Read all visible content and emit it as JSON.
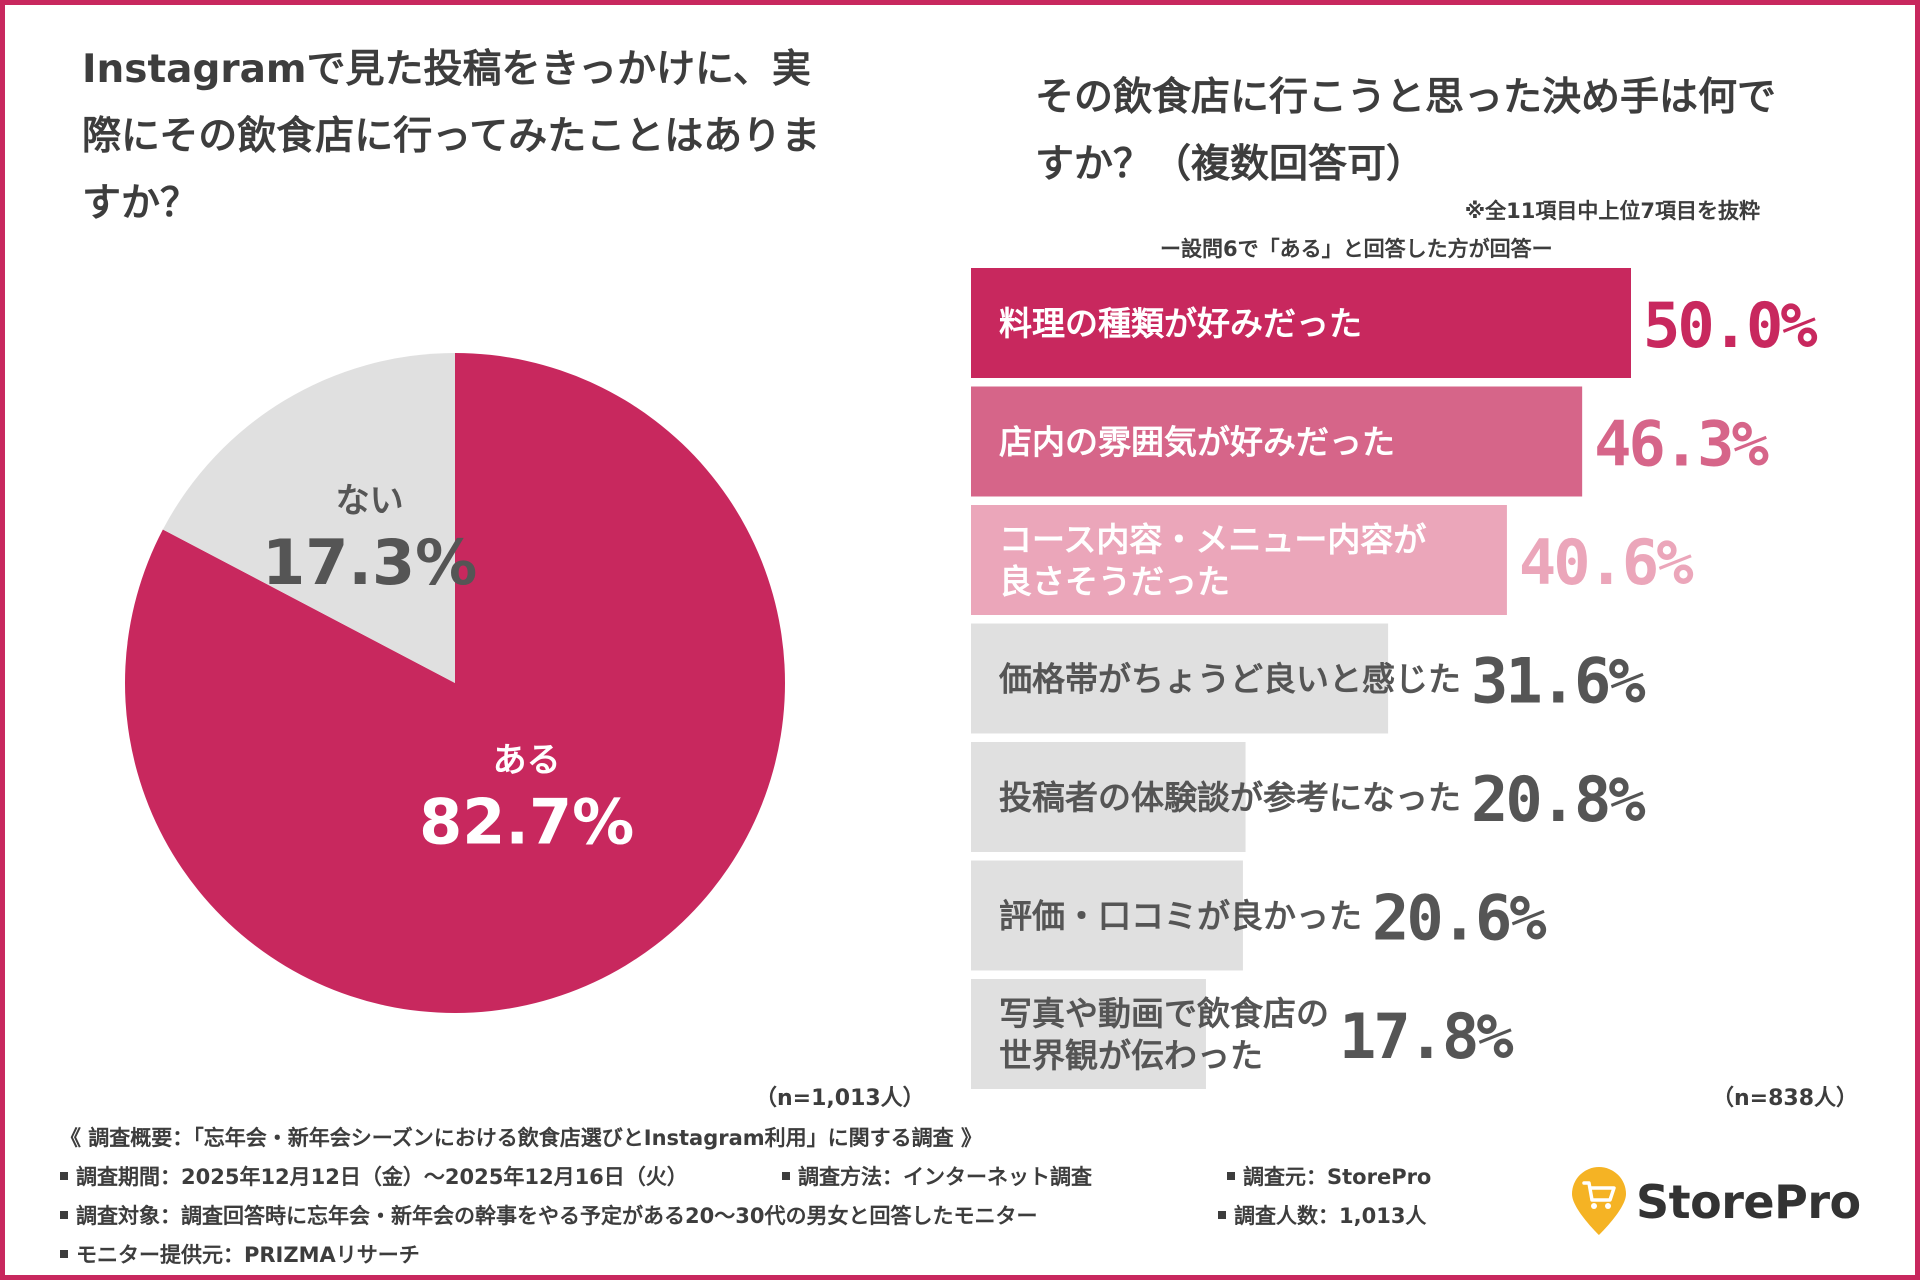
{
  "left_title": "Instagramで見た投稿をきっかけに、実際にその飲食店に行ってみたことはありますか？",
  "right_title": "その飲食店に行こうと思った決め手は何ですか？（複数回答可）",
  "note_top": "※全11項目中上位7項目を抜粋",
  "note_condition": "ー設問6で「ある」と回答した方が回答ー",
  "n_left": "（n=1,013人）",
  "n_right": "（n=838人）",
  "colors": {
    "accent": "#c8285e",
    "mid_pink": "#d66589",
    "light_pink": "#eba6ba",
    "gray_bar": "#e0e0e0",
    "gray_text": "#555555",
    "logo_yellow": "#f5b324"
  },
  "chart_data": [
    {
      "type": "pie",
      "slices": [
        {
          "label": "ある",
          "value": 82.7,
          "display": "82.7%",
          "color": "#c8285e"
        },
        {
          "label": "ない",
          "value": 17.3,
          "display": "17.3%",
          "color": "#e0e0e0"
        }
      ]
    },
    {
      "type": "bar",
      "orientation": "horizontal",
      "xlim": [
        0,
        50
      ],
      "categories": [
        "料理の種類が好みだった",
        "店内の雰囲気が好みだった",
        "コース内容・メニュー内容が良さそうだった",
        "価格帯がちょうど良いと感じた",
        "投稿者の体験談が参考になった",
        "評価・口コミが良かった",
        "写真や動画で飲食店の世界観が伝わった"
      ],
      "label_lines": [
        [
          "料理の種類が好みだった"
        ],
        [
          "店内の雰囲気が好みだった"
        ],
        [
          "コース内容・メニュー内容が",
          "良さそうだった"
        ],
        [
          "価格帯がちょうど良いと感じた"
        ],
        [
          "投稿者の体験談が参考になった"
        ],
        [
          "評価・口コミが良かった"
        ],
        [
          "写真や動画で飲食店の",
          "世界観が伝わった"
        ]
      ],
      "values": [
        50.0,
        46.3,
        40.6,
        31.6,
        20.8,
        20.6,
        17.8
      ],
      "value_labels": [
        "50.0%",
        "46.3%",
        "40.6%",
        "31.6%",
        "20.8%",
        "20.6%",
        "17.8%"
      ]
    }
  ],
  "footer": {
    "title": "《 調査概要：「忘年会・新年会シーズンにおける飲食店選びとInstagram利用」に関する調査 》",
    "period": "調査期間：2025年12月12日（金）〜2025年12月16日（火）",
    "method": "調査方法：インターネット調査",
    "source": "調査元：StorePro",
    "target": "調査対象：調査回答時に忘年会・新年会の幹事をやる予定がある20〜30代の男女と回答したモニター",
    "count": "調査人数：1,013人",
    "provider": "モニター提供元：PRIZMAリサーチ"
  },
  "logo": {
    "text": "StorePro",
    "icon": "shopping-cart-pin-icon"
  }
}
